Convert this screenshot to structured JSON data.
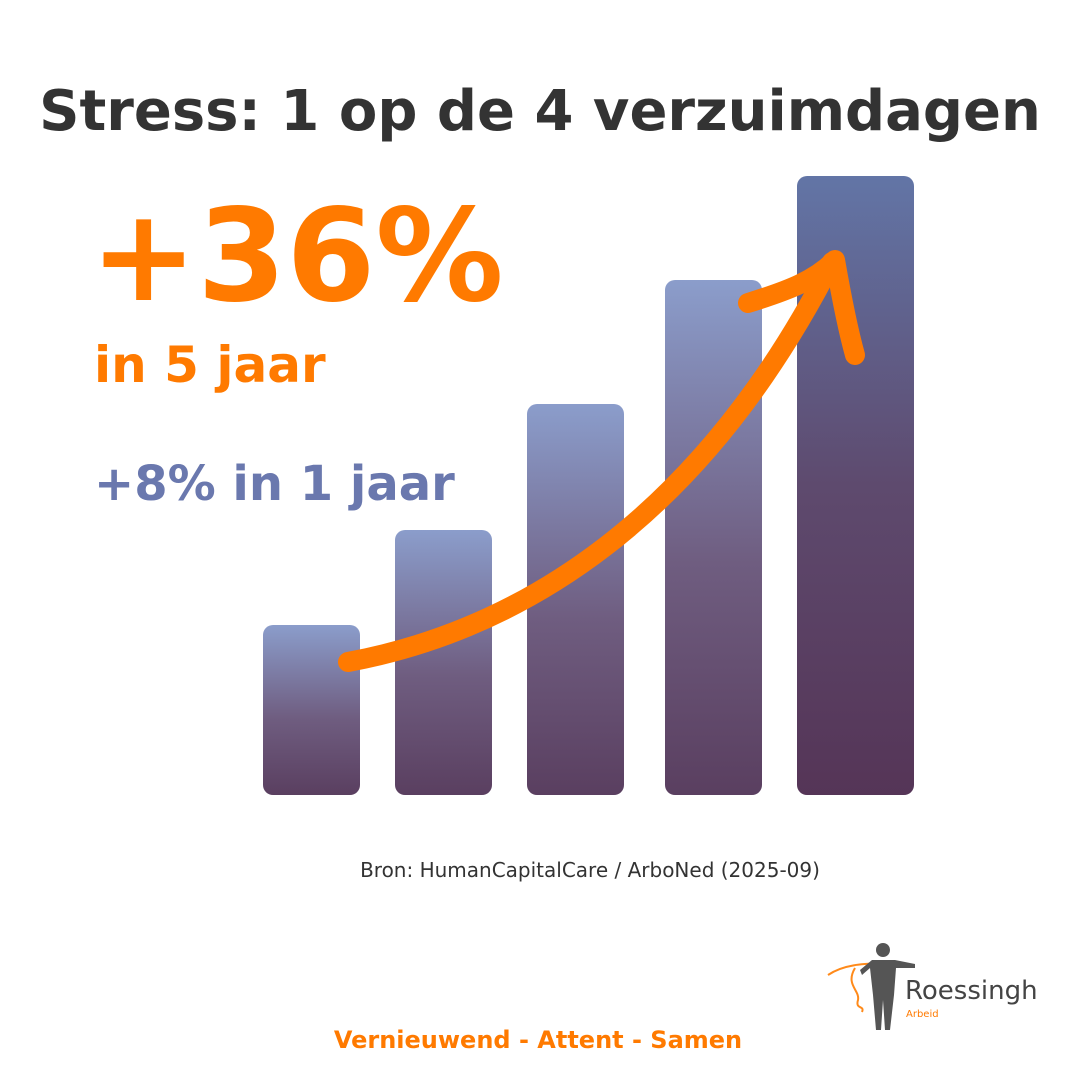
{
  "header": {
    "title": "Stress: 1 op de 4 verzuimdagen"
  },
  "highlight": {
    "main_stat": "+36%",
    "main_period": "in 5 jaar",
    "secondary": "+8% in 1 jaar"
  },
  "source": "Bron: HumanCapitalCare / ArboNed (2025-09)",
  "logo": {
    "name": "Roessingh",
    "subtitle": "Arbeid"
  },
  "tagline": "Vernieuwend - Attent - Samen"
}
